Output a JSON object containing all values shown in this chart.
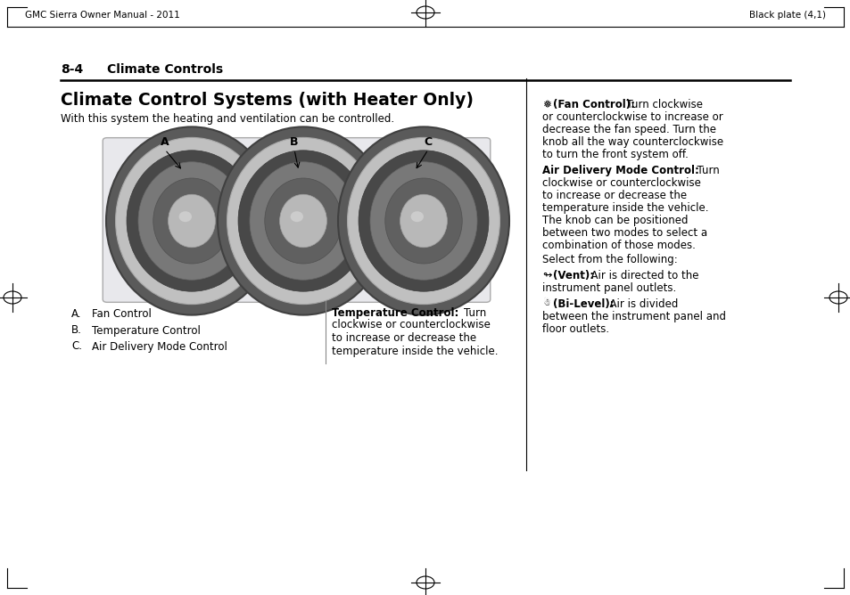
{
  "page_bg": "#ffffff",
  "header_left": "GMC Sierra Owner Manual - 2011",
  "header_right": "Black plate (4,1)",
  "section_label": "8-4",
  "section_title": "Climate Controls",
  "main_title": "Climate Control Systems (with Heater Only)",
  "subtitle": "With this system the heating and ventilation can be controlled.",
  "list_A": "A.   Fan Control",
  "list_B": "B.   Temperature Control",
  "list_C": "C.   Air Delivery Mode Control",
  "temp_bold": "Temperature Control:",
  "temp_text": "  Turn\nclockwise or counterclockwise\nto increase or decrease the\ntemperature inside the vehicle.",
  "fan_icon": "★",
  "fan_bold": "(Fan Control):",
  "fan_text1": "  Turn clockwise",
  "fan_text2": "or counterclockwise to increase or",
  "fan_text3": "decrease the fan speed. Turn the",
  "fan_text4": "knob all the way counterclockwise",
  "fan_text5": "to turn the front system off.",
  "adm_bold": "Air Delivery Mode Control:",
  "adm_text1": "  Turn",
  "adm_text2": "clockwise or counterclockwise",
  "adm_text3": "to increase or decrease the",
  "adm_text4": "temperature inside the vehicle.",
  "adm_text5": "The knob can be positioned",
  "adm_text6": "between two modes to select a",
  "adm_text7": "combination of those modes.",
  "select_text": "Select from the following:",
  "vent_bold": "(Vent):",
  "vent_text1": "  Air is directed to the",
  "vent_text2": "instrument panel outlets.",
  "bilevel_bold": "(Bi-Level):",
  "bilevel_text1": "  Air is divided",
  "bilevel_text2": "between the instrument panel and",
  "bilevel_text3": "floor outlets.",
  "figw": 9.54,
  "figh": 6.68
}
